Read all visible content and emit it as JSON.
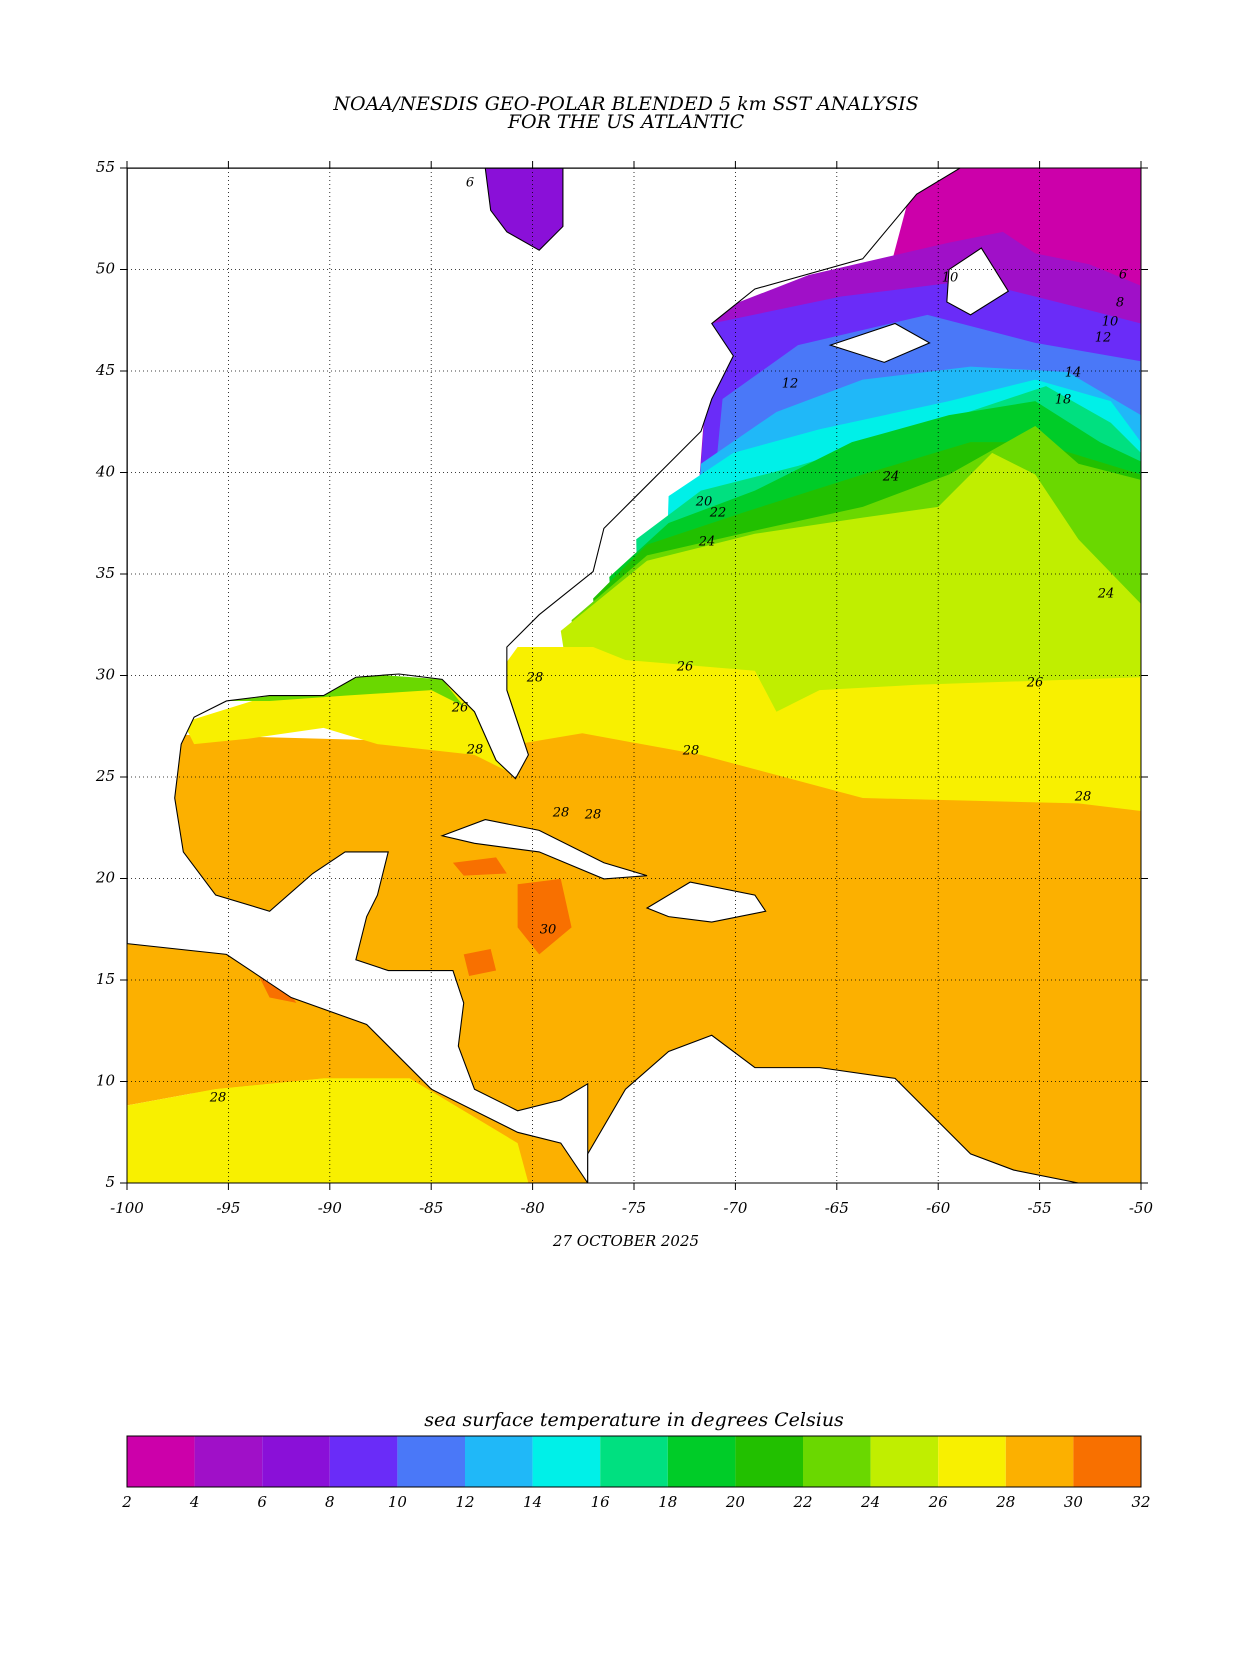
{
  "title": "NOAA/NESDIS GEO-POLAR BLENDED 5 km SST ANALYSIS",
  "subtitle": "FOR THE US ATLANTIC",
  "date": "27 OCTOBER 2025",
  "map": {
    "xlim": [
      -100,
      -50
    ],
    "ylim": [
      5,
      55
    ],
    "xticks": [
      -100,
      -95,
      -90,
      -85,
      -80,
      -75,
      -70,
      -65,
      -60,
      -55,
      -50
    ],
    "yticks": [
      5,
      10,
      15,
      20,
      25,
      30,
      35,
      40,
      45,
      50,
      55
    ],
    "contour_labels": [
      6,
      10,
      6,
      8,
      10,
      12,
      14,
      18,
      12,
      20,
      22,
      24,
      24,
      24,
      26,
      26,
      26,
      28,
      28,
      28,
      28,
      28,
      28,
      30,
      28
    ]
  },
  "colorbar": {
    "label": "sea surface temperature in degrees Celsius",
    "levels": [
      2,
      4,
      6,
      8,
      10,
      12,
      14,
      16,
      18,
      20,
      22,
      24,
      26,
      28,
      30,
      32
    ],
    "colors": [
      "#cc00aa",
      "#a010c8",
      "#8a10d8",
      "#6a2cf8",
      "#4a78f8",
      "#20b8f8",
      "#00f0e8",
      "#00e080",
      "#00cc28",
      "#22c000",
      "#6ad800",
      "#c0ee00",
      "#f8f000",
      "#fcb000",
      "#f87000"
    ]
  }
}
